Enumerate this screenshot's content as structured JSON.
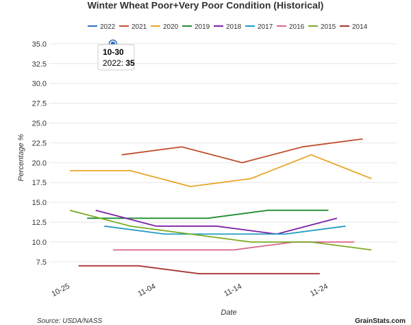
{
  "chart_data": {
    "type": "line",
    "title": "Winter Wheat Poor+Very Poor Condition (Historical)",
    "xlabel": "Date",
    "ylabel": "Percentage %",
    "x_ticks": [
      "10-25",
      "11-04",
      "11-14",
      "11-24"
    ],
    "y_ticks": [
      "7.5",
      "10.0",
      "12.5",
      "15.0",
      "17.5",
      "20.0",
      "22.5",
      "25.0",
      "27.5",
      "30.0",
      "32.5",
      "35.0"
    ],
    "ylim": [
      5.5,
      36.2
    ],
    "xlim": [
      "10-25",
      "12-02"
    ],
    "grid": true,
    "legend_position": "top",
    "series": [
      {
        "name": "2022",
        "color": "#2e6fbd",
        "points": [
          {
            "x": "10-30",
            "y": 35
          }
        ]
      },
      {
        "name": "2021",
        "color": "#c0502e",
        "points": [
          {
            "x": "10-31",
            "y": 21
          },
          {
            "x": "11-07",
            "y": 22
          },
          {
            "x": "11-14",
            "y": 20
          },
          {
            "x": "11-21",
            "y": 22
          },
          {
            "x": "11-28",
            "y": 23
          }
        ]
      },
      {
        "name": "2020",
        "color": "#e8a524",
        "points": [
          {
            "x": "10-25",
            "y": 19
          },
          {
            "x": "11-01",
            "y": 19
          },
          {
            "x": "11-08",
            "y": 17
          },
          {
            "x": "11-15",
            "y": 18
          },
          {
            "x": "11-22",
            "y": 21
          },
          {
            "x": "11-29",
            "y": 18
          }
        ]
      },
      {
        "name": "2019",
        "color": "#1e8c2e",
        "points": [
          {
            "x": "10-27",
            "y": 13
          },
          {
            "x": "11-03",
            "y": 13
          },
          {
            "x": "11-10",
            "y": 13
          },
          {
            "x": "11-17",
            "y": 14
          },
          {
            "x": "11-24",
            "y": 14
          }
        ]
      },
      {
        "name": "2018",
        "color": "#7b1fa2",
        "points": [
          {
            "x": "10-28",
            "y": 14
          },
          {
            "x": "11-04",
            "y": 12
          },
          {
            "x": "11-11",
            "y": 12
          },
          {
            "x": "11-18",
            "y": 11
          },
          {
            "x": "11-25",
            "y": 13
          }
        ]
      },
      {
        "name": "2017",
        "color": "#1f9bc2",
        "points": [
          {
            "x": "10-29",
            "y": 12
          },
          {
            "x": "11-05",
            "y": 11
          },
          {
            "x": "11-12",
            "y": 11
          },
          {
            "x": "11-19",
            "y": 11
          },
          {
            "x": "11-26",
            "y": 12
          }
        ]
      },
      {
        "name": "2016",
        "color": "#d9628a",
        "points": [
          {
            "x": "10-30",
            "y": 9
          },
          {
            "x": "11-06",
            "y": 9
          },
          {
            "x": "11-13",
            "y": 9
          },
          {
            "x": "11-20",
            "y": 10
          },
          {
            "x": "11-27",
            "y": 10
          }
        ]
      },
      {
        "name": "2015",
        "color": "#7aab1f",
        "points": [
          {
            "x": "10-25",
            "y": 14
          },
          {
            "x": "11-01",
            "y": 12
          },
          {
            "x": "11-08",
            "y": 11
          },
          {
            "x": "11-15",
            "y": 10
          },
          {
            "x": "11-22",
            "y": 10
          },
          {
            "x": "11-29",
            "y": 9
          }
        ]
      },
      {
        "name": "2014",
        "color": "#a83232",
        "points": [
          {
            "x": "10-26",
            "y": 7
          },
          {
            "x": "11-02",
            "y": 7
          },
          {
            "x": "11-09",
            "y": 6
          },
          {
            "x": "11-16",
            "y": 6
          },
          {
            "x": "11-23",
            "y": 6
          }
        ]
      }
    ],
    "tooltip": {
      "date": "10-30",
      "series": "2022",
      "value_label": "2022: ",
      "value": "35"
    }
  },
  "footer": {
    "source": "Source: USDA/NASS",
    "brand": "GrainStats.com"
  },
  "colors": {
    "grid": "#e6e6e6",
    "text": "#333333",
    "tooltip_border": "#cccccc"
  }
}
